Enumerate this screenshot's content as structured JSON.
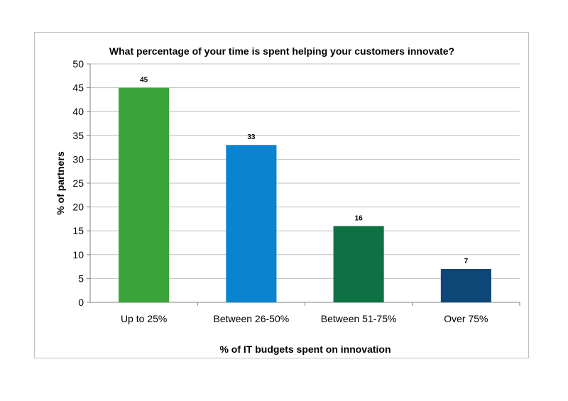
{
  "chart_data": {
    "type": "bar",
    "title": "What percentage of your time is spent helping your customers innovate?",
    "xlabel": "% of IT budgets spent on innovation",
    "ylabel": "% of partners",
    "categories": [
      "Up to 25%",
      "Between 26-50%",
      "Between 51-75%",
      "Over 75%"
    ],
    "values": [
      45,
      33,
      16,
      7
    ],
    "data_labels": [
      "45",
      "33",
      "16",
      "7"
    ],
    "bar_colors": [
      "#3aa43a",
      "#0a84cf",
      "#0e7144",
      "#0d4777"
    ],
    "ylim": [
      0,
      50
    ],
    "yticks": [
      0,
      5,
      10,
      15,
      20,
      25,
      30,
      35,
      40,
      45,
      50
    ],
    "grid": true,
    "legend": "none"
  }
}
